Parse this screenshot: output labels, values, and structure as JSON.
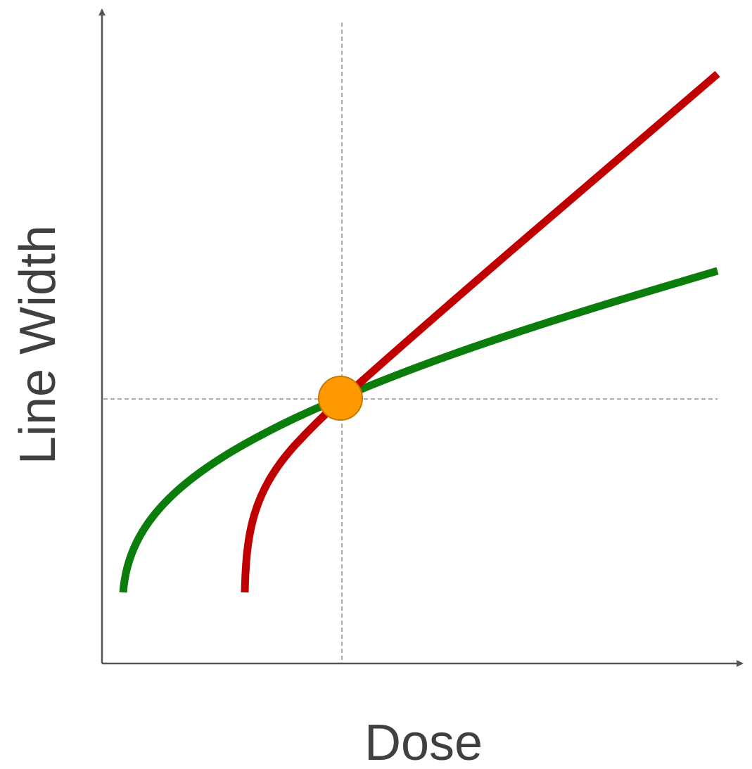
{
  "axes": {
    "x_label": "Dose",
    "y_label": "Line Width"
  }
}
